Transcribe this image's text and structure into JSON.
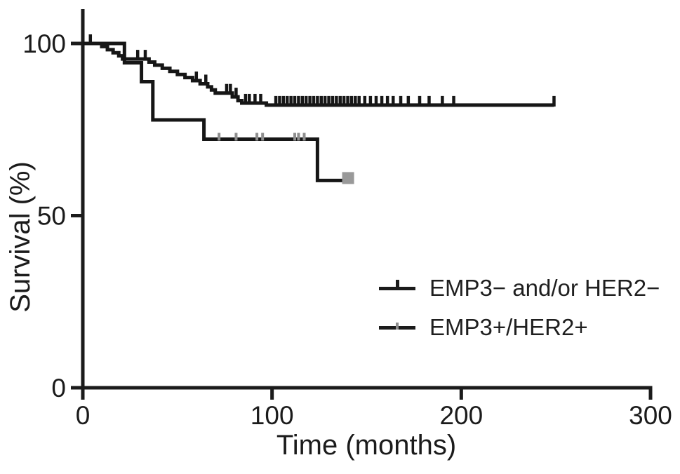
{
  "chart_data": {
    "type": "line",
    "subtype": "kaplan_meier_step",
    "title": "",
    "xlabel": "Time (months)",
    "ylabel": "Survival (%)",
    "xlim": [
      0,
      300
    ],
    "ylim": [
      0,
      100
    ],
    "xticks": [
      0,
      100,
      200,
      300
    ],
    "yticks": [
      0,
      50,
      100
    ],
    "grid": false,
    "legend_position": "inside-right-middle",
    "axis_color": "#1b1b1b",
    "series": [
      {
        "name": "EMP3− and/or HER2−",
        "color": "#161616",
        "censor_color": "#161616",
        "steps": [
          [
            0,
            100
          ],
          [
            10,
            99.1
          ],
          [
            13,
            98.2
          ],
          [
            16,
            97.3
          ],
          [
            19,
            96.4
          ],
          [
            21,
            95.5
          ],
          [
            35,
            94.6
          ],
          [
            38,
            93.7
          ],
          [
            42,
            92.8
          ],
          [
            46,
            91.9
          ],
          [
            50,
            91.0
          ],
          [
            54,
            90.1
          ],
          [
            58,
            89.2
          ],
          [
            62,
            88.3
          ],
          [
            66,
            87.4
          ],
          [
            68,
            86.5
          ],
          [
            70,
            85.6
          ],
          [
            79,
            84.5
          ],
          [
            82,
            83.4
          ],
          [
            84,
            82.7
          ],
          [
            97,
            82.1
          ]
        ],
        "end_time": 249,
        "end_survival_pct": 82.1,
        "censor_times": [
          4,
          29,
          33,
          60,
          65,
          76,
          78,
          81,
          86,
          88,
          91,
          94,
          102,
          104,
          106,
          108,
          110,
          112,
          114,
          116,
          118,
          120,
          122,
          124,
          126,
          128,
          130,
          132,
          134,
          136,
          138,
          140,
          142,
          144,
          146,
          149,
          152,
          155,
          158,
          161,
          164,
          168,
          172,
          178,
          183,
          190,
          196,
          249
        ],
        "end_marker": "tick"
      },
      {
        "name": "EMP3+/HER2+",
        "color": "#161616",
        "censor_color": "#8e8e8e",
        "steps": [
          [
            0,
            100
          ],
          [
            22,
            94.4
          ],
          [
            31,
            88.9
          ],
          [
            37,
            77.8
          ],
          [
            64,
            72.2
          ],
          [
            124,
            60.2
          ]
        ],
        "end_time": 140,
        "end_survival_pct": 60.2,
        "censor_times": [
          72,
          81,
          92,
          95,
          112,
          114,
          117
        ],
        "end_marker": "square",
        "end_marker_color": "#999999"
      }
    ]
  }
}
